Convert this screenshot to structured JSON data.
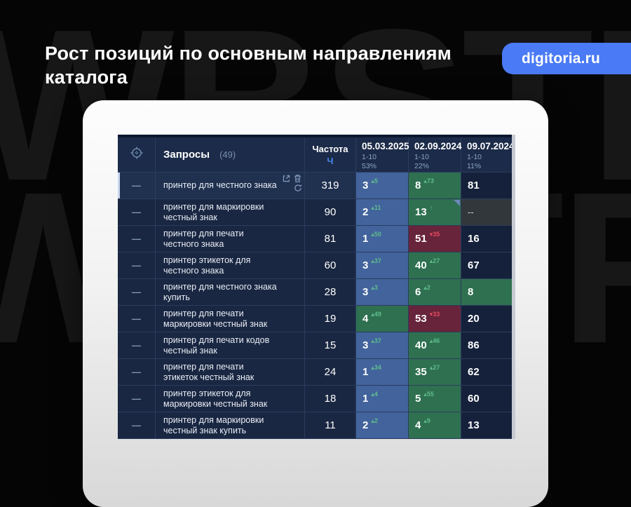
{
  "slide": {
    "title": "Рост позиций по основным направлениям каталога",
    "badge": "digitoria.ru",
    "watermark": "WBSTR"
  },
  "table": {
    "queries_label": "Запросы",
    "queries_count": "(49)",
    "frequency_label": "Частота",
    "frequency_sub": "Ч",
    "row_handle": "—",
    "date_columns": [
      {
        "date": "05.03.2025",
        "range": "1-10",
        "percent": "53%"
      },
      {
        "date": "02.09.2024",
        "range": "1-10",
        "percent": "22%"
      },
      {
        "date": "09.07.2024",
        "range": "1-10",
        "percent": "11%"
      }
    ],
    "rows": [
      {
        "query": "принтер для честного знака",
        "frequency": "319",
        "icons": true,
        "hovered": true,
        "cells": [
          {
            "value": "3",
            "delta": "5",
            "dir": "up",
            "type": "blue"
          },
          {
            "value": "8",
            "delta": "73",
            "dir": "up",
            "type": "green"
          },
          {
            "value": "81",
            "type": "plain"
          }
        ]
      },
      {
        "query": "принтер для маркировки честный знак",
        "frequency": "90",
        "cells": [
          {
            "value": "2",
            "delta": "11",
            "dir": "up",
            "type": "blue"
          },
          {
            "value": "13",
            "delta": "",
            "dir": "up",
            "type": "green",
            "marker": true
          },
          {
            "value": "--",
            "type": "muted"
          }
        ]
      },
      {
        "query": "принтер для печати честного знака",
        "frequency": "81",
        "cells": [
          {
            "value": "1",
            "delta": "50",
            "dir": "up",
            "type": "blue"
          },
          {
            "value": "51",
            "delta": "35",
            "dir": "down",
            "type": "red"
          },
          {
            "value": "16",
            "type": "plain"
          }
        ]
      },
      {
        "query": "принтер этикеток для честного знака",
        "frequency": "60",
        "cells": [
          {
            "value": "3",
            "delta": "37",
            "dir": "up",
            "type": "blue"
          },
          {
            "value": "40",
            "delta": "27",
            "dir": "up",
            "type": "green"
          },
          {
            "value": "67",
            "type": "plain"
          }
        ]
      },
      {
        "query": "принтер для честного знака купить",
        "frequency": "28",
        "cells": [
          {
            "value": "3",
            "delta": "3",
            "dir": "up",
            "type": "blue"
          },
          {
            "value": "6",
            "delta": "2",
            "dir": "up",
            "type": "green"
          },
          {
            "value": "8",
            "type": "green"
          }
        ]
      },
      {
        "query": "принтер для печати маркировки честный знак",
        "frequency": "19",
        "cells": [
          {
            "value": "4",
            "delta": "49",
            "dir": "up",
            "type": "green"
          },
          {
            "value": "53",
            "delta": "33",
            "dir": "down",
            "type": "red"
          },
          {
            "value": "20",
            "type": "plain"
          }
        ]
      },
      {
        "query": "принтер для печати кодов честный знак",
        "frequency": "15",
        "cells": [
          {
            "value": "3",
            "delta": "37",
            "dir": "up",
            "type": "blue"
          },
          {
            "value": "40",
            "delta": "46",
            "dir": "up",
            "type": "green"
          },
          {
            "value": "86",
            "type": "plain"
          }
        ]
      },
      {
        "query": "принтер для печати этикеток честный знак",
        "frequency": "24",
        "cells": [
          {
            "value": "1",
            "delta": "34",
            "dir": "up",
            "type": "blue"
          },
          {
            "value": "35",
            "delta": "27",
            "dir": "up",
            "type": "green"
          },
          {
            "value": "62",
            "type": "plain"
          }
        ]
      },
      {
        "query": "принтер этикеток для маркировки честный знак",
        "frequency": "18",
        "cells": [
          {
            "value": "1",
            "delta": "4",
            "dir": "up",
            "type": "blue"
          },
          {
            "value": "5",
            "delta": "55",
            "dir": "up",
            "type": "green"
          },
          {
            "value": "60",
            "type": "plain"
          }
        ]
      },
      {
        "query": "принтер для маркировки честный знак купить",
        "frequency": "11",
        "cells": [
          {
            "value": "2",
            "delta": "2",
            "dir": "up",
            "type": "blue"
          },
          {
            "value": "4",
            "delta": "9",
            "dir": "up",
            "type": "green"
          },
          {
            "value": "13",
            "type": "plain"
          }
        ]
      }
    ]
  },
  "colors": {
    "accent_blue": "#4a7af5",
    "row_bg": "#1a2742",
    "header_bg": "#1c2b49",
    "separator": "#2b3c5e",
    "plain_cell": "#15213a",
    "cell_blue": "#42639c",
    "cell_green": "#2e7050",
    "cell_red": "#67243a",
    "cell_muted": "#32373c",
    "delta_up": "#5fbd8c",
    "delta_down": "#e8485f",
    "icon_color": "#8097b8"
  }
}
